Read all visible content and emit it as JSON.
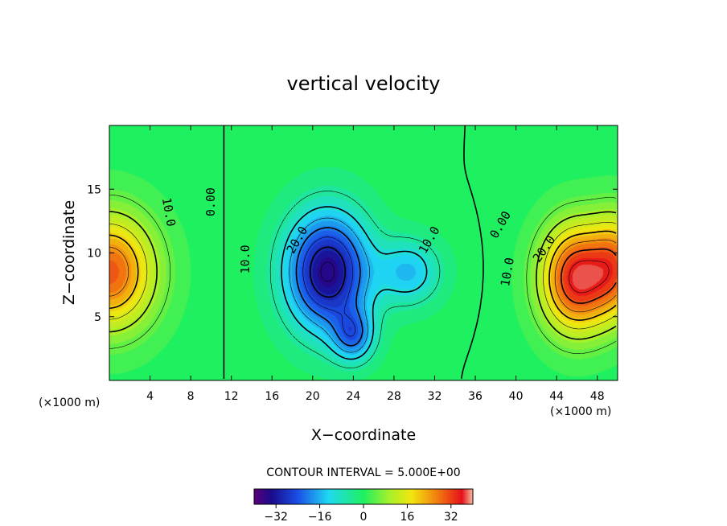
{
  "chart_data": {
    "type": "heatmap",
    "title": "vertical velocity",
    "xlabel": "X−coordinate",
    "ylabel": "Z−coordinate",
    "x_unit_left": "(×1000 m)",
    "x_unit_right": "(×1000 m)",
    "xlim": [
      0,
      50
    ],
    "ylim": [
      0,
      20
    ],
    "x_ticks": [
      4,
      8,
      12,
      16,
      20,
      24,
      28,
      32,
      36,
      40,
      44,
      48
    ],
    "x_tick_labels": [
      "4",
      "8",
      "12",
      "16",
      "20",
      "24",
      "28",
      "32",
      "36",
      "40",
      "44",
      "48"
    ],
    "y_ticks": [
      5,
      10,
      15
    ],
    "y_tick_labels": [
      "5",
      "10",
      "15"
    ],
    "contour_interval_text": "CONTOUR INTERVAL = 5.000E+00",
    "colorbar": {
      "range": [
        -40,
        40
      ],
      "ticks": [
        -32,
        -16,
        0,
        16,
        32
      ],
      "tick_labels": [
        "−32",
        "−16",
        "0",
        "16",
        "32"
      ]
    },
    "contour_labels": [
      {
        "text": "10.0",
        "x": 5.8,
        "y": 13.2,
        "rotate": 80
      },
      {
        "text": "0.00",
        "x": 10.0,
        "y": 14.0,
        "rotate": -90
      },
      {
        "text": "10.0",
        "x": 13.4,
        "y": 9.5,
        "rotate": -90
      },
      {
        "text": "20.0",
        "x": 18.5,
        "y": 11.0,
        "rotate": -60
      },
      {
        "text": "10.0",
        "x": 31.5,
        "y": 11.0,
        "rotate": -60
      },
      {
        "text": "0.00",
        "x": 38.5,
        "y": 12.2,
        "rotate": -60
      },
      {
        "text": "10.0",
        "x": 39.2,
        "y": 8.5,
        "rotate": -80
      },
      {
        "text": "20.0",
        "x": 42.8,
        "y": 10.3,
        "rotate": -55
      }
    ],
    "features": [
      {
        "kind": "updraft",
        "x": 0.0,
        "z": 8.5,
        "amp": 30,
        "sx": 4.5,
        "sz": 4.5
      },
      {
        "kind": "downdraft",
        "x": 21.5,
        "z": 8.5,
        "amp": -36,
        "sx": 4.0,
        "sz": 4.5
      },
      {
        "kind": "downdraft_tail",
        "x": 24.0,
        "z": 3.5,
        "amp": -18,
        "sx": 2.0,
        "sz": 2.0
      },
      {
        "kind": "downdraft_branch",
        "x": 29.5,
        "z": 8.5,
        "amp": -14,
        "sx": 3.0,
        "sz": 2.5
      },
      {
        "kind": "updraft",
        "x": 46.0,
        "z": 8.0,
        "amp": 36,
        "sx": 3.5,
        "sz": 4.2
      },
      {
        "kind": "updraft_ext",
        "x": 50.0,
        "z": 9.0,
        "amp": 22,
        "sx": 2.5,
        "sz": 4.0
      }
    ]
  }
}
